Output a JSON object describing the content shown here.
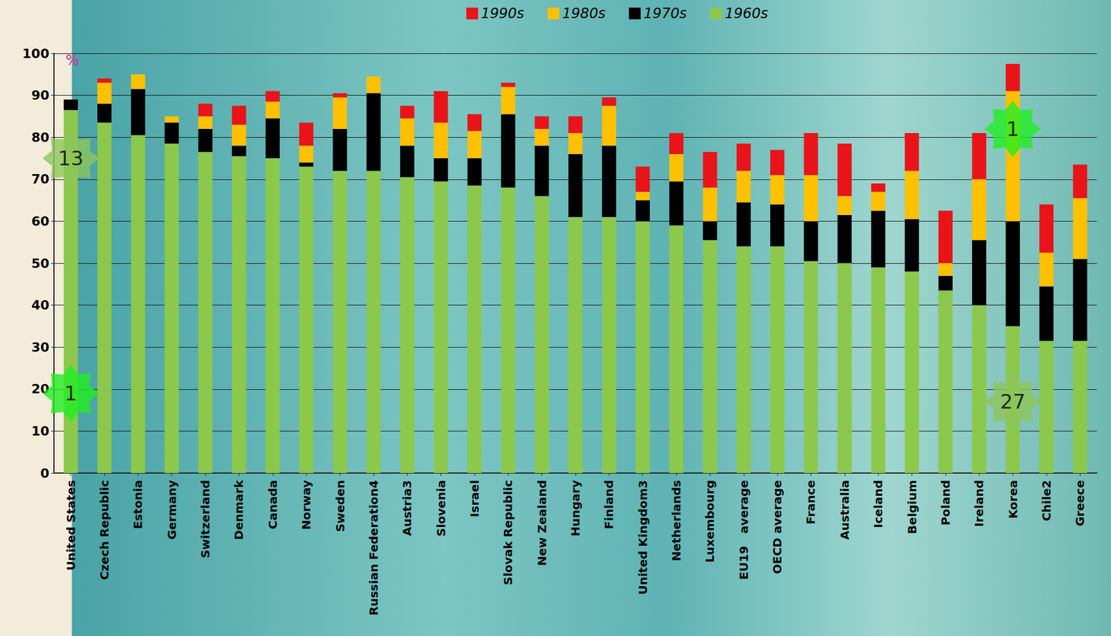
{
  "chart_data": {
    "type": "bar",
    "stacked": true,
    "grid": true,
    "legend": "top",
    "y_label": "%",
    "categories": [
      "United States",
      "Czech Republic",
      "Estonia",
      "Germany",
      "Switzerland",
      "Denmark",
      "Canada",
      "Norway",
      "Sweden",
      "Russian Federation4",
      "Austria3",
      "Slovenia",
      "Israel",
      "Slovak Republic",
      "New Zealand",
      "Hungary",
      "Finland",
      "United Kingdom3",
      "Netherlands",
      "Luxembourg",
      "EU19   average",
      "OECD average",
      "France",
      "Australia",
      "Iceland",
      "Belgium",
      "Poland",
      "Ireland",
      "Korea",
      "Chile2",
      "Greece"
    ],
    "series": [
      {
        "name": "1990s",
        "color": "#e8141a",
        "values": [
          0,
          1,
          0,
          0,
          3,
          4.5,
          2.5,
          5.5,
          1,
          0,
          3,
          7.5,
          4,
          1,
          3,
          4,
          2,
          6,
          5,
          8.5,
          6.5,
          6,
          10,
          12.5,
          2,
          9,
          12.5,
          11,
          6.5,
          11.5,
          8
        ]
      },
      {
        "name": "1980s",
        "color": "#ffc000",
        "values": [
          0,
          5,
          3.5,
          1.5,
          3,
          5,
          4,
          4,
          7.5,
          4,
          6.5,
          8.5,
          6.5,
          6.5,
          4,
          5,
          9.5,
          2,
          6.5,
          8,
          7.5,
          7,
          11,
          4.5,
          4.5,
          11.5,
          3,
          14.5,
          31,
          8,
          14.5
        ]
      },
      {
        "name": "1970s",
        "color": "#000000",
        "values": [
          2.5,
          4.5,
          11,
          5,
          5.5,
          2.5,
          9.5,
          1,
          10,
          18.5,
          7.5,
          5.5,
          6.5,
          17.5,
          12,
          15,
          17,
          5,
          10.5,
          4.5,
          10.5,
          10,
          9.5,
          11.5,
          13.5,
          12.5,
          3.5,
          15.5,
          25,
          13,
          19.5
        ]
      },
      {
        "name": "1960s",
        "color": "#8cc84b",
        "values": [
          86.5,
          83.5,
          80.5,
          78.5,
          76.5,
          75.5,
          75,
          73,
          72,
          72,
          70.5,
          69.5,
          68.5,
          68,
          66,
          61,
          61,
          60,
          59,
          55.5,
          54,
          54,
          50.5,
          50,
          49,
          48,
          43.5,
          40,
          35,
          31.5,
          31.5
        ]
      }
    ],
    "ylim": [
      0,
      100
    ],
    "yticks": [
      0,
      10,
      20,
      30,
      40,
      50,
      60,
      70,
      80,
      90,
      100
    ],
    "annotations": [
      {
        "text": "13",
        "category": "United States",
        "y": 75,
        "color": "#8dc65a"
      },
      {
        "text": "1",
        "category": "United States",
        "y": 19,
        "color": "#22ee22"
      },
      {
        "text": "1",
        "category": "Korea",
        "y": 82,
        "color": "#22ee22"
      },
      {
        "text": "27",
        "category": "Korea",
        "y": 17,
        "color": "#8dc65a"
      }
    ]
  }
}
